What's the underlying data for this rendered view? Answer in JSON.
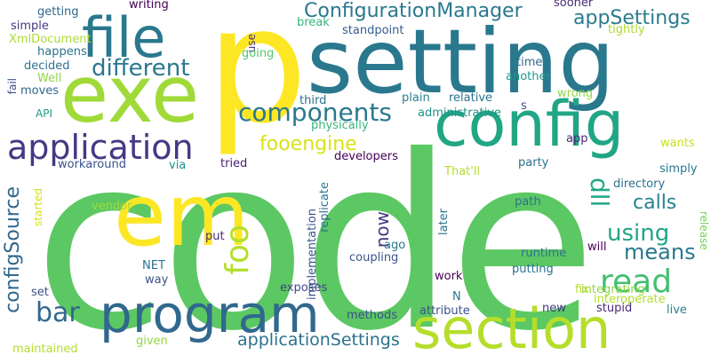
{
  "words": [
    {
      "text": "code",
      "color": "#5cc863"
    },
    {
      "text": "p",
      "color": "#fde725"
    },
    {
      "text": "setting",
      "color": "#2a788e"
    },
    {
      "text": "exe",
      "color": "#a0da39"
    },
    {
      "text": "config",
      "color": "#21a685"
    },
    {
      "text": "file",
      "color": "#2a788e"
    },
    {
      "text": "em",
      "color": "#fde725"
    },
    {
      "text": "program",
      "color": "#31688e"
    },
    {
      "text": "section",
      "color": "#b5de2b"
    },
    {
      "text": "application",
      "color": "#443983"
    },
    {
      "text": "components",
      "color": "#2a788e"
    },
    {
      "text": "ConfigurationManager",
      "color": "#2a788e"
    },
    {
      "text": "appSettings",
      "color": "#287c8e"
    },
    {
      "text": "different",
      "color": "#2a788e"
    },
    {
      "text": "read",
      "color": "#44bf70"
    },
    {
      "text": "foo",
      "color": "#b5de2b"
    },
    {
      "text": "fooengine",
      "color": "#d8e219"
    },
    {
      "text": "using",
      "color": "#21a685"
    },
    {
      "text": "means",
      "color": "#2a788e"
    },
    {
      "text": "calls",
      "color": "#26828e"
    },
    {
      "text": "bar",
      "color": "#31688e"
    },
    {
      "text": "configSource",
      "color": "#31688e"
    },
    {
      "text": "dll",
      "color": "#22a884"
    },
    {
      "text": "applicationSettings",
      "color": "#2c728e"
    },
    {
      "text": "now",
      "color": "#443983"
    },
    {
      "text": "writing",
      "color": "#440154"
    },
    {
      "text": "getting",
      "color": "#31688e"
    },
    {
      "text": "simple",
      "color": "#443983"
    },
    {
      "text": "XmlDocument",
      "color": "#addc30"
    },
    {
      "text": "happens",
      "color": "#2c728e"
    },
    {
      "text": "decided",
      "color": "#2c728e"
    },
    {
      "text": "Well",
      "color": "#8fd744"
    },
    {
      "text": "moves",
      "color": "#31688e"
    },
    {
      "text": "fail",
      "color": "#3b528b"
    },
    {
      "text": "API",
      "color": "#1e9b8a"
    },
    {
      "text": "break",
      "color": "#35b779"
    },
    {
      "text": "standpoint",
      "color": "#365c8d"
    },
    {
      "text": "use",
      "color": "#46337f"
    },
    {
      "text": "going",
      "color": "#52c569"
    },
    {
      "text": "sooner",
      "color": "#482878"
    },
    {
      "text": "tightly",
      "color": "#addc30"
    },
    {
      "text": "time",
      "color": "#31688e"
    },
    {
      "text": "another",
      "color": "#1f978b"
    },
    {
      "text": "third",
      "color": "#2c728e"
    },
    {
      "text": "plain",
      "color": "#26828e"
    },
    {
      "text": "relative",
      "color": "#2c728e"
    },
    {
      "text": "wrong",
      "color": "#8fd744"
    },
    {
      "text": "s",
      "color": "#3b528b"
    },
    {
      "text": "administrative",
      "color": "#21918c"
    },
    {
      "text": "physically",
      "color": "#35b779"
    },
    {
      "text": "app",
      "color": "#482878"
    },
    {
      "text": "wants",
      "color": "#c8e020"
    },
    {
      "text": "developers",
      "color": "#440154"
    },
    {
      "text": "That'll",
      "color": "#b5de2b"
    },
    {
      "text": "party",
      "color": "#2c728e"
    },
    {
      "text": "simply",
      "color": "#2a788e"
    },
    {
      "text": "workaround",
      "color": "#3b528b"
    },
    {
      "text": "via",
      "color": "#21918c"
    },
    {
      "text": "tried",
      "color": "#481f70"
    },
    {
      "text": "directory",
      "color": "#2c728e"
    },
    {
      "text": "started",
      "color": "#d2e21b"
    },
    {
      "text": "vendor",
      "color": "#a0da39"
    },
    {
      "text": "replicate",
      "color": "#2c728e"
    },
    {
      "text": "implementation",
      "color": "#3b528b"
    },
    {
      "text": "later",
      "color": "#2c728e"
    },
    {
      "text": "path",
      "color": "#2c728e"
    },
    {
      "text": "release",
      "color": "#74d055"
    },
    {
      "text": "put",
      "color": "#482878"
    },
    {
      "text": "runtime",
      "color": "#2c728e"
    },
    {
      "text": "will",
      "color": "#440154"
    },
    {
      "text": "NET",
      "color": "#2c728e"
    },
    {
      "text": "way",
      "color": "#3b528b"
    },
    {
      "text": "ago",
      "color": "#2a788e"
    },
    {
      "text": "coupling",
      "color": "#3b528b"
    },
    {
      "text": "putting",
      "color": "#2c728e"
    },
    {
      "text": "integrating",
      "color": "#8fd744"
    },
    {
      "text": "set",
      "color": "#3b528b"
    },
    {
      "text": "exposes",
      "color": "#414487"
    },
    {
      "text": "work",
      "color": "#440154"
    },
    {
      "text": "fix",
      "color": "#b5de2b"
    },
    {
      "text": "interoperate",
      "color": "#b5de2b"
    },
    {
      "text": "N",
      "color": "#2c728e"
    },
    {
      "text": "methods",
      "color": "#3b528b"
    },
    {
      "text": "attribute",
      "color": "#3b528b"
    },
    {
      "text": "new",
      "color": "#443983"
    },
    {
      "text": "stupid",
      "color": "#482878"
    },
    {
      "text": "live",
      "color": "#26828e"
    },
    {
      "text": "given",
      "color": "#8fd744"
    },
    {
      "text": "maintained",
      "color": "#b5de2b"
    }
  ]
}
